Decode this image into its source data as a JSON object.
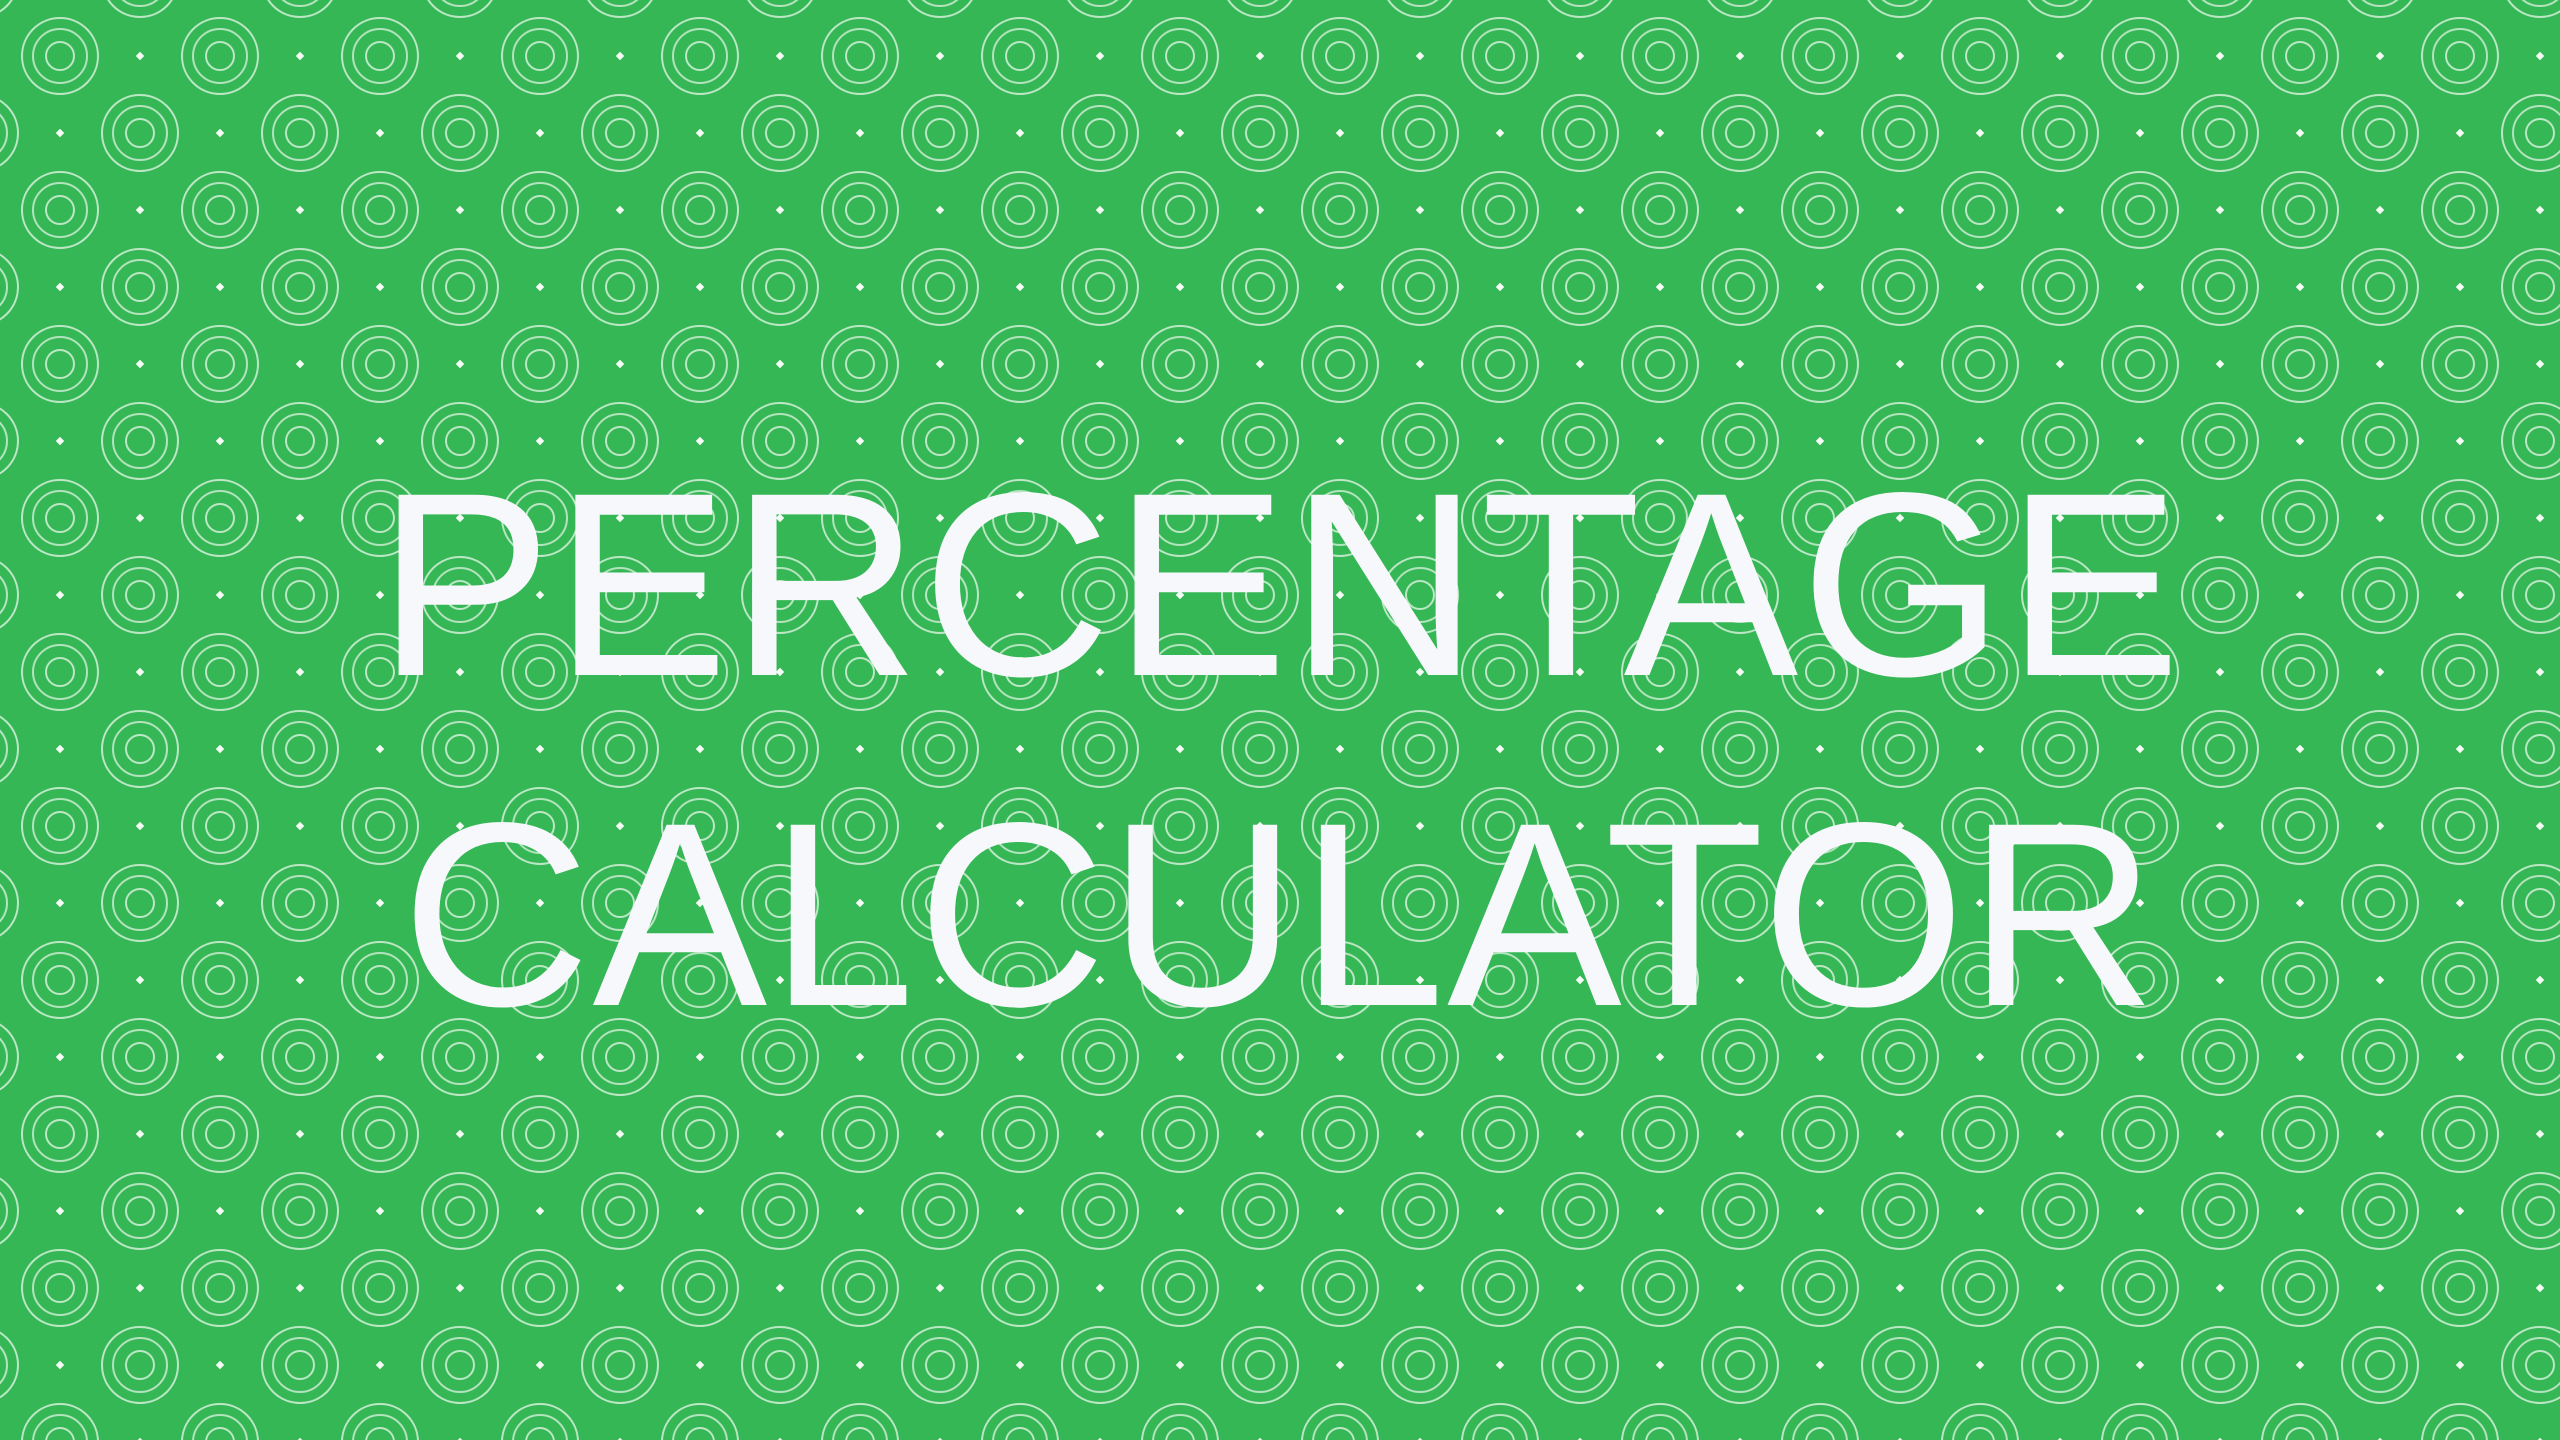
{
  "theme": {
    "background_color": "#35b755",
    "pattern_color": "#e8f6ea",
    "text_color": "#f6f8fb"
  },
  "background": {
    "pattern": "concentric-circle-dot-pattern"
  },
  "title": {
    "line1": "PERCENTAGE",
    "line2": "CALCULATOR"
  }
}
